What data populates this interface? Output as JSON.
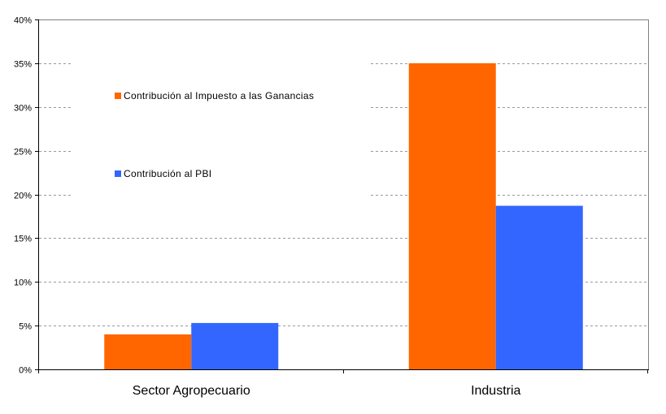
{
  "chart_data": {
    "type": "bar",
    "title": "",
    "xlabel": "",
    "ylabel": "",
    "categories": [
      "Sector Agropecuario",
      "Industria"
    ],
    "series": [
      {
        "name": "Contribución al Impuesto a las Ganancias",
        "values": [
          4.0,
          35.0
        ],
        "color": "#FF6600"
      },
      {
        "name": "Contribución al PBI",
        "values": [
          5.3,
          18.7
        ],
        "color": "#3366FF"
      }
    ],
    "ylim": [
      0,
      40
    ],
    "yticks": [
      0,
      5,
      10,
      15,
      20,
      25,
      30,
      35,
      40
    ],
    "ytick_labels": [
      "0%",
      "5%",
      "10%",
      "15%",
      "20%",
      "25%",
      "30%",
      "35%",
      "40%"
    ],
    "grid": true,
    "legend_position": "top-left"
  }
}
